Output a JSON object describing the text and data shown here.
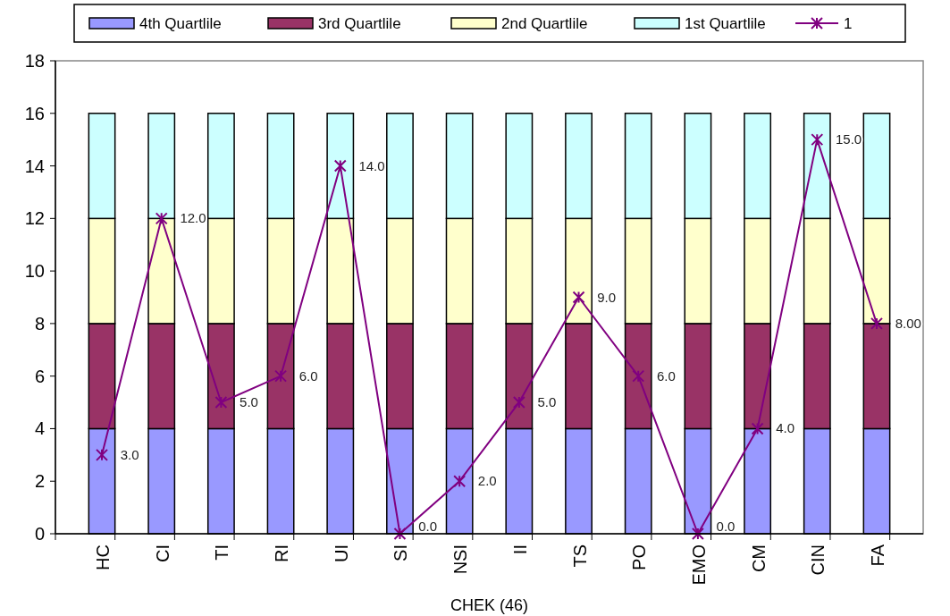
{
  "chart_data": {
    "type": "bar",
    "stacked": true,
    "xlabel": "CHEK (46)",
    "categories": [
      "HC",
      "CI",
      "TI",
      "RI",
      "UI",
      "SI",
      "NSI",
      "II",
      "TS",
      "PO",
      "EMO",
      "CM",
      "CIN",
      "FA"
    ],
    "ylim": [
      0,
      18
    ],
    "yticks": [
      0,
      2,
      4,
      6,
      8,
      10,
      12,
      14,
      16,
      18
    ],
    "legend": "top",
    "grid": false,
    "series": [
      {
        "name": "4th Quartlile",
        "color": "#9999ff",
        "values": [
          4,
          4,
          4,
          4,
          4,
          4,
          4,
          4,
          4,
          4,
          4,
          4,
          4,
          4
        ]
      },
      {
        "name": "3rd Quartlile",
        "color": "#993366",
        "values": [
          4,
          4,
          4,
          4,
          4,
          4,
          4,
          4,
          4,
          4,
          4,
          4,
          4,
          4
        ]
      },
      {
        "name": "2nd Quartlile",
        "color": "#ffffcc",
        "values": [
          4,
          4,
          4,
          4,
          4,
          4,
          4,
          4,
          4,
          4,
          4,
          4,
          4,
          4
        ]
      },
      {
        "name": "1st Quartlile",
        "color": "#ccffff",
        "values": [
          4,
          4,
          4,
          4,
          4,
          4,
          4,
          4,
          4,
          4,
          4,
          4,
          4,
          4
        ]
      },
      {
        "name": "1",
        "type": "line",
        "color": "#800080",
        "marker": "cross",
        "values": [
          3,
          12,
          5,
          6,
          14,
          0,
          2,
          5,
          9,
          6,
          0,
          4,
          15,
          8
        ],
        "value_labels": [
          "3.0",
          "12.0",
          "5.0",
          "6.0",
          "14.0",
          "0.0",
          "2.0",
          "5.0",
          "9.0",
          "6.0",
          "0.0",
          "4.0",
          "15.0",
          "8.00"
        ]
      }
    ]
  }
}
